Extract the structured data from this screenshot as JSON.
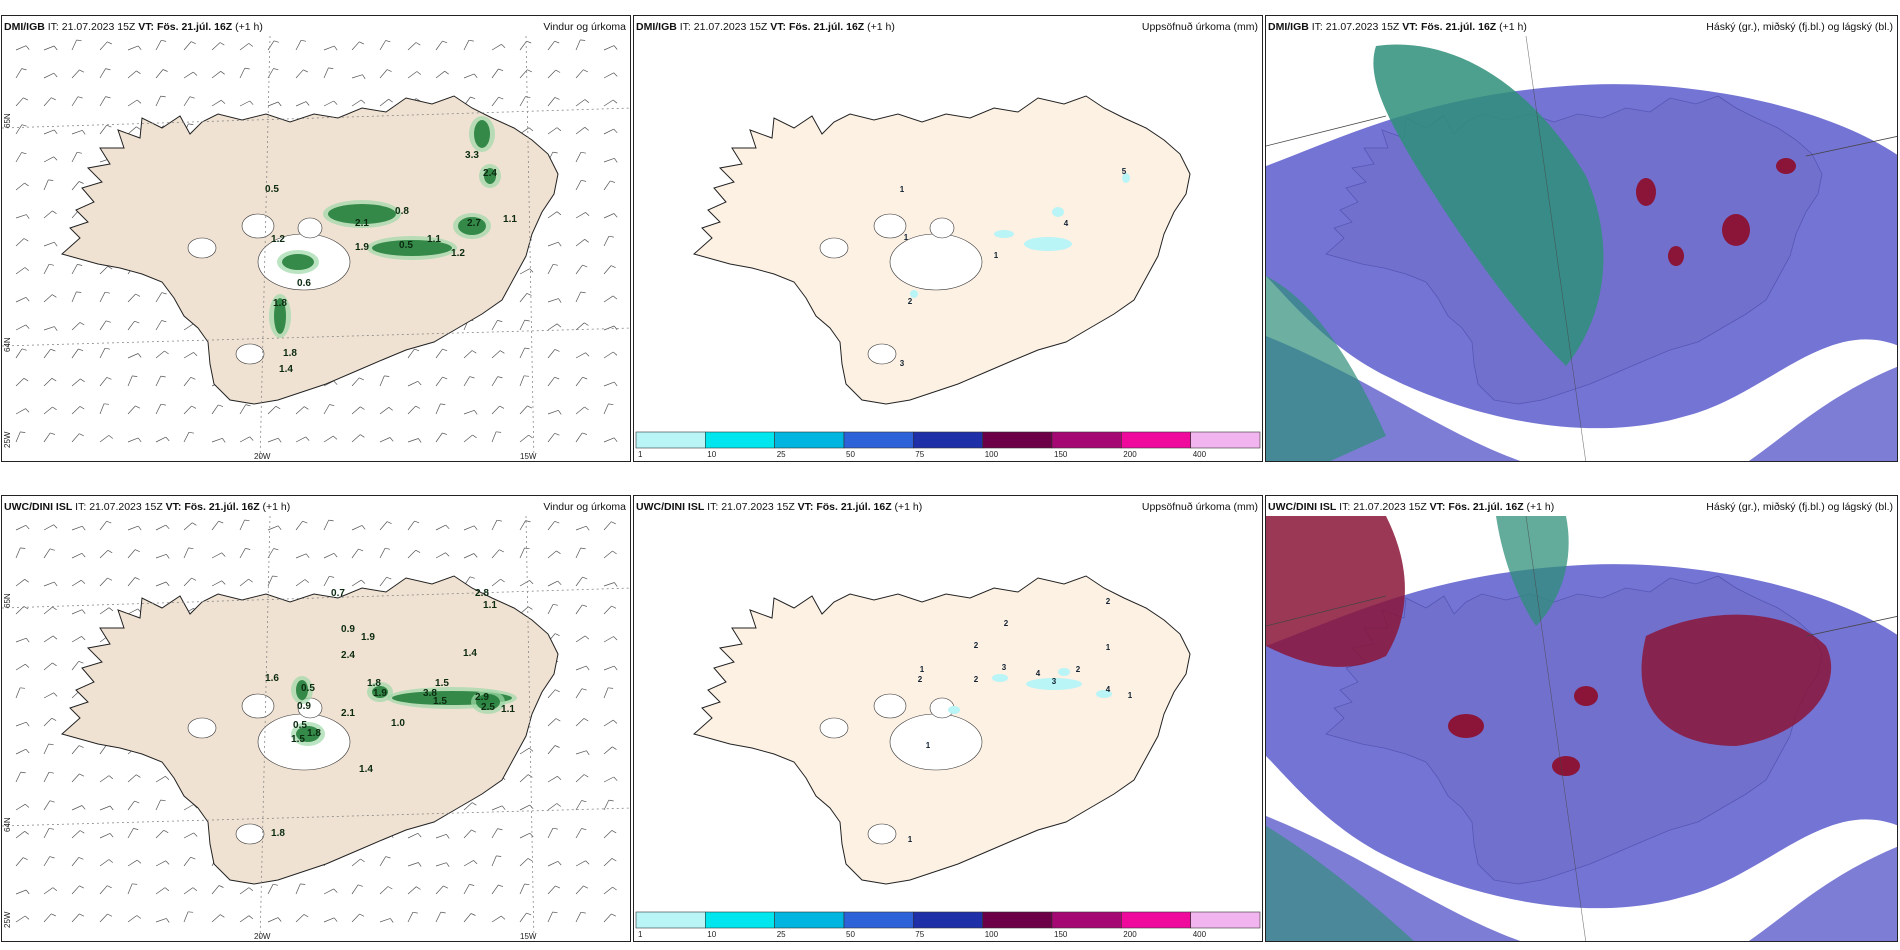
{
  "row1": {
    "model": "DMI/IGB",
    "wind_labels": [
      "0.5",
      "1.2",
      "2.1",
      "0.8",
      "1.9",
      "1.1",
      "0.5",
      "2.7",
      "1.1",
      "3.3",
      "2.4",
      "1.2",
      "0.6",
      "1.8",
      "1.8",
      "1.4"
    ],
    "precip_labels": [
      "1",
      "1",
      "1",
      "4",
      "5",
      "2",
      "3"
    ]
  },
  "row2": {
    "model": "UWC/DINI ISL",
    "wind_labels": [
      "0.7",
      "2.8",
      "1.1",
      "0.9",
      "1.9",
      "2.4",
      "1.4",
      "1.5",
      "1.6",
      "0.5",
      "0.9",
      "2.1",
      "1.8",
      "1.9",
      "3.8",
      "1.5",
      "2.9",
      "2.5",
      "1.1",
      "0.5",
      "1.8",
      "1.5",
      "1.0",
      "1.4",
      "1.8"
    ],
    "precip_labels": [
      "2",
      "2",
      "2",
      "1",
      "2",
      "2",
      "3",
      "4",
      "2",
      "3",
      "1",
      "4",
      "1",
      "1",
      "1"
    ]
  },
  "header": {
    "it_label": "IT:",
    "it_value": "21.07.2023 15Z",
    "vt_label": "VT:",
    "vt_value": "Fös. 21.júl. 16Z",
    "lead": "(+1 h)"
  },
  "titles": {
    "wind": "Vindur og úrkoma",
    "precip": "Uppsöfnuð úrkoma (mm)",
    "cloud": "Háský (gr.), miðský (fj.bl.) og lágský (bl.)"
  },
  "axes": {
    "lat_labels": [
      "65N",
      "64N"
    ],
    "lon_labels": [
      "25W",
      "20W",
      "15W"
    ]
  },
  "precip_scale": {
    "ticks": [
      "1",
      "10",
      "25",
      "50",
      "75",
      "100",
      "150",
      "200",
      "400"
    ],
    "colors": [
      "#b9f4f6",
      "#00e6ee",
      "#00b5e0",
      "#2e62d8",
      "#1f2fa8",
      "#6b0046",
      "#a60873",
      "#ef0a9d",
      "#f2b4ef"
    ]
  },
  "colors": {
    "land": "#f0e2d2",
    "land_precip": "#fdf1e4",
    "wind_green": "#1d7a35",
    "cloud_high": "#2f8f7a",
    "cloud_mid": "#5c5ccc",
    "cloud_low": "#8a1538"
  }
}
